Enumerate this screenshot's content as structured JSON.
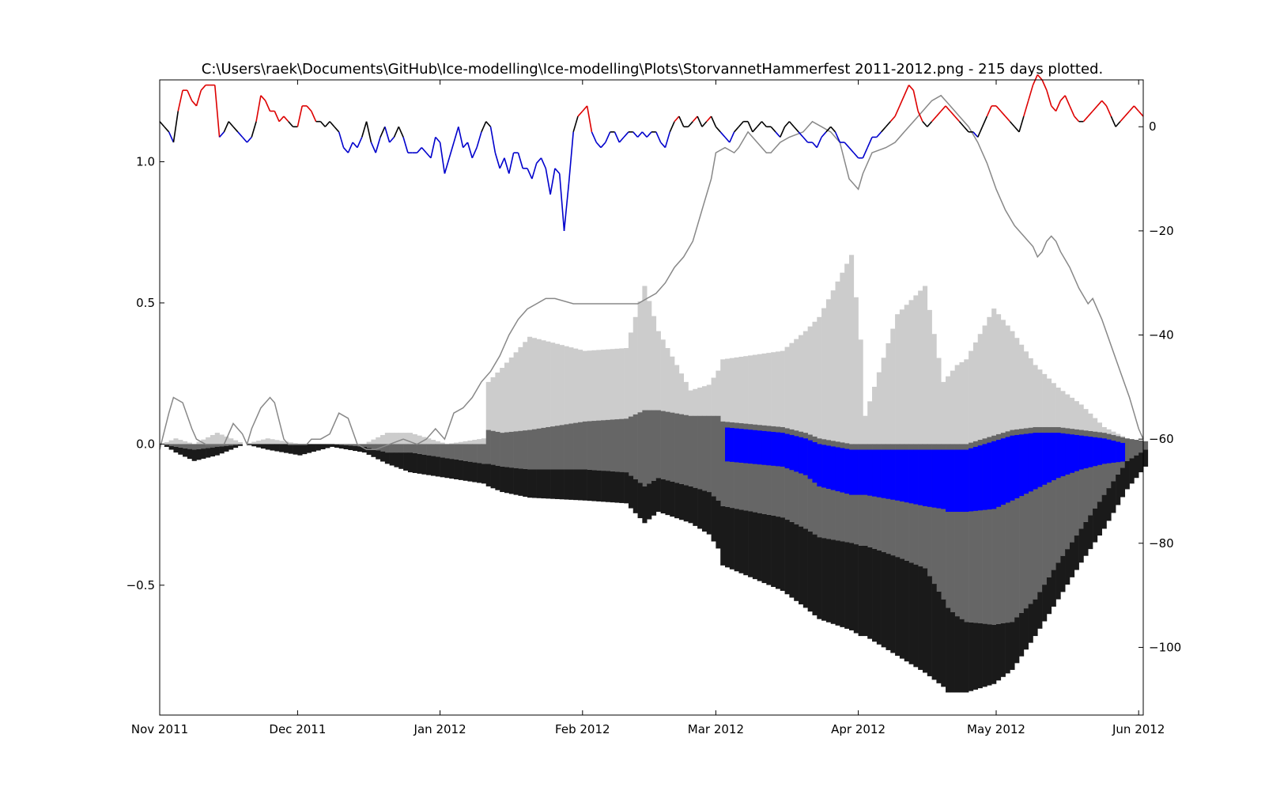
{
  "chart_data": {
    "type": "bar",
    "title": "C:\\Users\\raek\\Documents\\GitHub\\Ice-modelling\\Ice-modelling\\Plots\\StorvannetHammerfest 2011-2012.png - 215 days plotted.",
    "xlabel": "",
    "ylabel": "",
    "x_axis": {
      "type": "date",
      "range": [
        "2011-11-01",
        "2012-06-02"
      ],
      "tick_dates": [
        "2011-11-01",
        "2011-12-01",
        "2012-01-01",
        "2012-02-01",
        "2012-03-01",
        "2012-04-01",
        "2012-05-01",
        "2012-06-01"
      ],
      "tick_labels": [
        "Nov 2011",
        "Dec 2011",
        "Jan 2012",
        "Feb 2012",
        "Mar 2012",
        "Apr 2012",
        "May 2012",
        "Jun 2012"
      ]
    },
    "y_left": {
      "range": [
        -0.96,
        1.29
      ],
      "ticks": [
        -0.5,
        0.0,
        0.5,
        1.0
      ],
      "tick_labels": [
        "−0.5",
        "0.0",
        "0.5",
        "1.0"
      ]
    },
    "y_right": {
      "range": [
        -113,
        9
      ],
      "ticks": [
        -100,
        -80,
        -60,
        -40,
        -20,
        0
      ],
      "tick_labels": [
        "−100",
        "−80",
        "−60",
        "−40",
        "−20",
        "0"
      ]
    },
    "grid": false,
    "legend": "none",
    "colors": {
      "snow": "#cccccc",
      "slush_ice": "#666666",
      "black_ice": "#1a1a1a",
      "slush": "#0000ff",
      "temp_positive": "#dd0000",
      "temp_neutral": "#000000",
      "temp_negative": "#0000cc",
      "cumulative_line": "#888888"
    },
    "stack_key_days": [
      0,
      3,
      7,
      12,
      18,
      23,
      30,
      37,
      44,
      49,
      54,
      62,
      70,
      71,
      74,
      80,
      92,
      101,
      105,
      108,
      115,
      119,
      121,
      122,
      135,
      140,
      143,
      150,
      152,
      153,
      160,
      166,
      170,
      171,
      173,
      175,
      181,
      185,
      190,
      195,
      200,
      205,
      210,
      214
    ],
    "snow_top": [
      0.0,
      0.02,
      0.0,
      0.04,
      0.0,
      0.02,
      0.0,
      0.0,
      0.0,
      0.04,
      0.04,
      0.0,
      0.02,
      0.22,
      0.27,
      0.38,
      0.33,
      0.34,
      0.56,
      0.4,
      0.19,
      0.21,
      0.26,
      0.3,
      0.33,
      0.4,
      0.45,
      0.67,
      0.37,
      0.1,
      0.46,
      0.56,
      0.22,
      0.24,
      0.28,
      0.3,
      0.48,
      0.4,
      0.28,
      0.2,
      0.14,
      0.06,
      0.02,
      0.0
    ],
    "slush_ice_top": [
      0.0,
      0.0,
      0.0,
      0.0,
      0.0,
      0.0,
      0.0,
      0.0,
      0.0,
      0.0,
      0.0,
      0.0,
      0.0,
      0.05,
      0.04,
      0.05,
      0.08,
      0.09,
      0.12,
      0.12,
      0.1,
      0.1,
      0.1,
      0.08,
      0.06,
      0.04,
      0.02,
      0.0,
      0.0,
      0.0,
      0.0,
      0.0,
      0.0,
      0.0,
      0.0,
      0.0,
      0.03,
      0.05,
      0.06,
      0.06,
      0.05,
      0.04,
      0.02,
      0.01
    ],
    "slush_bottom": [
      0.0,
      0.0,
      0.0,
      0.0,
      0.0,
      0.0,
      0.0,
      0.0,
      0.0,
      0.0,
      0.0,
      0.0,
      0.0,
      0.0,
      0.0,
      0.0,
      0.0,
      0.0,
      0.0,
      0.0,
      0.0,
      0.0,
      0.0,
      0.0,
      -0.02,
      -0.05,
      -0.09,
      -0.12,
      -0.12,
      -0.12,
      -0.14,
      -0.16,
      -0.17,
      -0.18,
      -0.18,
      -0.18,
      -0.17,
      -0.14,
      -0.1,
      -0.06,
      -0.03,
      -0.01,
      0.0,
      0.0
    ],
    "grey_bottom": [
      0.0,
      -0.01,
      -0.02,
      -0.01,
      0.0,
      0.0,
      0.0,
      0.0,
      -0.01,
      -0.03,
      -0.03,
      -0.05,
      -0.07,
      -0.07,
      -0.08,
      -0.09,
      -0.09,
      -0.1,
      -0.15,
      -0.12,
      -0.15,
      -0.17,
      -0.2,
      -0.22,
      -0.26,
      -0.3,
      -0.33,
      -0.35,
      -0.36,
      -0.36,
      -0.4,
      -0.44,
      -0.55,
      -0.58,
      -0.61,
      -0.63,
      -0.64,
      -0.63,
      -0.55,
      -0.42,
      -0.3,
      -0.18,
      -0.06,
      -0.02
    ],
    "black_bottom": [
      0.0,
      -0.03,
      -0.06,
      -0.04,
      0.0,
      -0.02,
      -0.04,
      -0.01,
      -0.03,
      -0.07,
      -0.1,
      -0.12,
      -0.14,
      -0.15,
      -0.17,
      -0.19,
      -0.2,
      -0.21,
      -0.28,
      -0.24,
      -0.28,
      -0.32,
      -0.37,
      -0.43,
      -0.52,
      -0.58,
      -0.62,
      -0.66,
      -0.68,
      -0.68,
      -0.75,
      -0.81,
      -0.86,
      -0.88,
      -0.88,
      -0.88,
      -0.85,
      -0.8,
      -0.68,
      -0.55,
      -0.42,
      -0.3,
      -0.16,
      -0.08
    ],
    "temperature_daily": [
      1,
      0,
      -1,
      -3,
      3,
      7,
      7,
      5,
      4,
      7,
      8,
      8,
      8,
      -2,
      -1,
      1,
      0,
      -1,
      -2,
      -3,
      -2,
      1,
      6,
      5,
      3,
      3,
      1,
      2,
      1,
      0,
      0,
      4,
      4,
      3,
      1,
      1,
      0,
      1,
      0,
      -1,
      -4,
      -5,
      -3,
      -4,
      -2,
      1,
      -3,
      -5,
      -2,
      0,
      -3,
      -2,
      0,
      -2,
      -5,
      -5,
      -5,
      -4,
      -5,
      -6,
      -2,
      -3,
      -9,
      -6,
      -3,
      0,
      -4,
      -3,
      -6,
      -4,
      -1,
      1,
      0,
      -5,
      -8,
      -6,
      -9,
      -5,
      -5,
      -8,
      -8,
      -10,
      -7,
      -6,
      -8,
      -13,
      -8,
      -9,
      -20,
      -11,
      -1,
      2,
      3,
      4,
      -1,
      -3,
      -4,
      -3,
      -1,
      -1,
      -3,
      -2,
      -1,
      -1,
      -2,
      -1,
      -2,
      -1,
      -1,
      -3,
      -4,
      -1,
      1,
      2,
      0,
      0,
      1,
      2,
      0,
      1,
      2,
      0,
      -1,
      -2,
      -3,
      -1,
      0,
      1,
      1,
      -1,
      0,
      1,
      0,
      0,
      -1,
      -2,
      0,
      1,
      0,
      -1,
      -2,
      -3,
      -3,
      -4,
      -2,
      -1,
      0,
      -1,
      -3,
      -3,
      -4,
      -5,
      -6,
      -6,
      -4,
      -2,
      -2,
      -1,
      0,
      1,
      2,
      4,
      6,
      8,
      7,
      3,
      1,
      0,
      1,
      2,
      3,
      4,
      3,
      2,
      1,
      0,
      -1,
      -1,
      -2,
      0,
      2,
      4,
      4,
      3,
      2,
      1,
      0,
      -1,
      2,
      5,
      8,
      10,
      9,
      7,
      4,
      3,
      5,
      6,
      4,
      2,
      1,
      1,
      2,
      3,
      4,
      5,
      4,
      2,
      0,
      1,
      2,
      3,
      4,
      3,
      2
    ],
    "cumulative_line_keys": [
      [
        0,
        -62
      ],
      [
        2,
        -55
      ],
      [
        3,
        -52
      ],
      [
        5,
        -53
      ],
      [
        7,
        -58
      ],
      [
        8,
        -60
      ],
      [
        10,
        -61
      ],
      [
        12,
        -61
      ],
      [
        14,
        -61
      ],
      [
        16,
        -57
      ],
      [
        18,
        -59
      ],
      [
        19,
        -61
      ],
      [
        20,
        -58
      ],
      [
        22,
        -54
      ],
      [
        24,
        -52
      ],
      [
        25,
        -53
      ],
      [
        27,
        -60
      ],
      [
        28,
        -61
      ],
      [
        30,
        -61
      ],
      [
        32,
        -61
      ],
      [
        33,
        -60
      ],
      [
        35,
        -60
      ],
      [
        37,
        -59
      ],
      [
        39,
        -55
      ],
      [
        41,
        -56
      ],
      [
        43,
        -61
      ],
      [
        45,
        -62
      ],
      [
        47,
        -62
      ],
      [
        50,
        -61
      ],
      [
        53,
        -60
      ],
      [
        56,
        -61
      ],
      [
        58,
        -60
      ],
      [
        60,
        -58
      ],
      [
        62,
        -60
      ],
      [
        64,
        -55
      ],
      [
        66,
        -54
      ],
      [
        68,
        -52
      ],
      [
        70,
        -49
      ],
      [
        72,
        -47
      ],
      [
        74,
        -44
      ],
      [
        76,
        -40
      ],
      [
        78,
        -37
      ],
      [
        80,
        -35
      ],
      [
        82,
        -34
      ],
      [
        84,
        -33
      ],
      [
        86,
        -33
      ],
      [
        90,
        -34
      ],
      [
        95,
        -34
      ],
      [
        100,
        -34
      ],
      [
        104,
        -34
      ],
      [
        106,
        -33
      ],
      [
        108,
        -32
      ],
      [
        110,
        -30
      ],
      [
        112,
        -27
      ],
      [
        114,
        -25
      ],
      [
        116,
        -22
      ],
      [
        118,
        -16
      ],
      [
        120,
        -10
      ],
      [
        121,
        -5
      ],
      [
        123,
        -4
      ],
      [
        125,
        -5
      ],
      [
        126,
        -4
      ],
      [
        128,
        -1
      ],
      [
        130,
        -3
      ],
      [
        132,
        -5
      ],
      [
        133,
        -5
      ],
      [
        135,
        -3
      ],
      [
        137,
        -2
      ],
      [
        140,
        -1
      ],
      [
        142,
        1
      ],
      [
        144,
        0
      ],
      [
        146,
        -1
      ],
      [
        148,
        -3
      ],
      [
        150,
        -10
      ],
      [
        152,
        -12
      ],
      [
        153,
        -9
      ],
      [
        155,
        -5
      ],
      [
        158,
        -4
      ],
      [
        160,
        -3
      ],
      [
        162,
        -1
      ],
      [
        164,
        1
      ],
      [
        166,
        3
      ],
      [
        168,
        5
      ],
      [
        170,
        6
      ],
      [
        172,
        4
      ],
      [
        174,
        2
      ],
      [
        176,
        0
      ],
      [
        178,
        -3
      ],
      [
        180,
        -7
      ],
      [
        182,
        -12
      ],
      [
        184,
        -16
      ],
      [
        186,
        -19
      ],
      [
        188,
        -21
      ],
      [
        190,
        -23
      ],
      [
        191,
        -25
      ],
      [
        192,
        -24
      ],
      [
        193,
        -22
      ],
      [
        194,
        -21
      ],
      [
        195,
        -22
      ],
      [
        196,
        -24
      ],
      [
        198,
        -27
      ],
      [
        200,
        -31
      ],
      [
        202,
        -34
      ],
      [
        203,
        -33
      ],
      [
        205,
        -37
      ],
      [
        207,
        -42
      ],
      [
        209,
        -47
      ],
      [
        211,
        -52
      ],
      [
        212,
        -55
      ],
      [
        213,
        -58
      ],
      [
        214,
        -60
      ]
    ],
    "cumulative_line_y_units": "right axis"
  }
}
